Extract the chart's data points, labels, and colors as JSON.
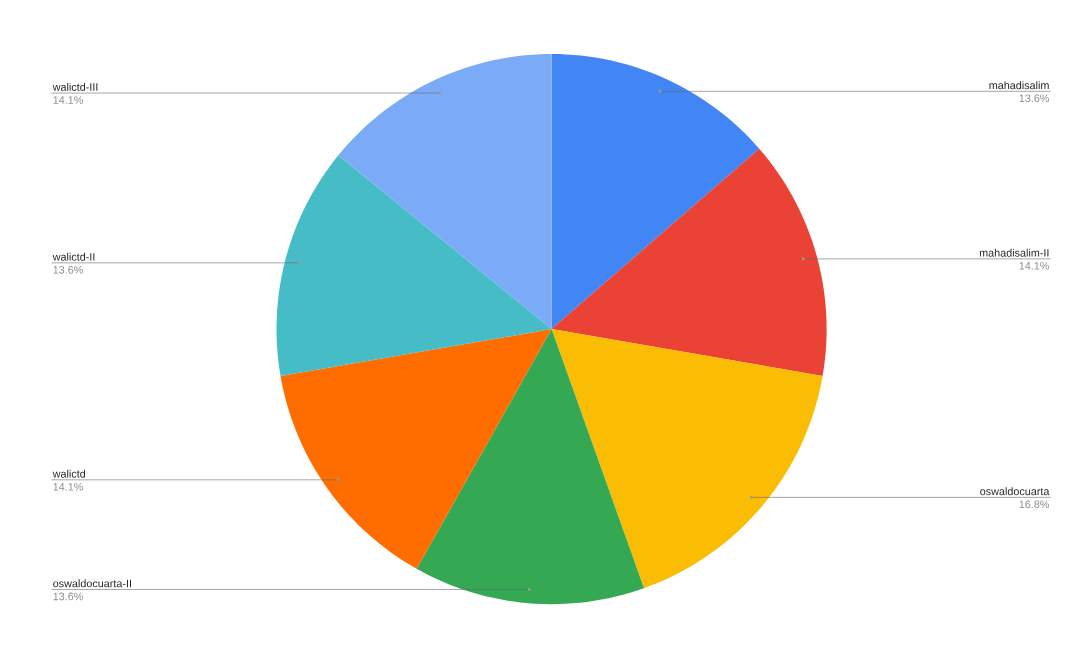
{
  "chart_data": {
    "type": "pie",
    "categories": [
      "mahadisalim",
      "mahadisalim-II",
      "oswaldocuarta",
      "oswaldocuarta-II",
      "walictd",
      "walictd-II",
      "walictd-III"
    ],
    "values": [
      13.6,
      14.1,
      16.8,
      13.6,
      14.1,
      13.6,
      14.1
    ],
    "value_labels": [
      "13.6%",
      "14.1%",
      "16.8%",
      "13.6%",
      "14.1%",
      "13.6%",
      "14.1%"
    ],
    "colors": [
      "#4285f4",
      "#ea4335",
      "#fbbc04",
      "#34a853",
      "#ff6d01",
      "#46bdc6",
      "#7baaf7"
    ]
  }
}
